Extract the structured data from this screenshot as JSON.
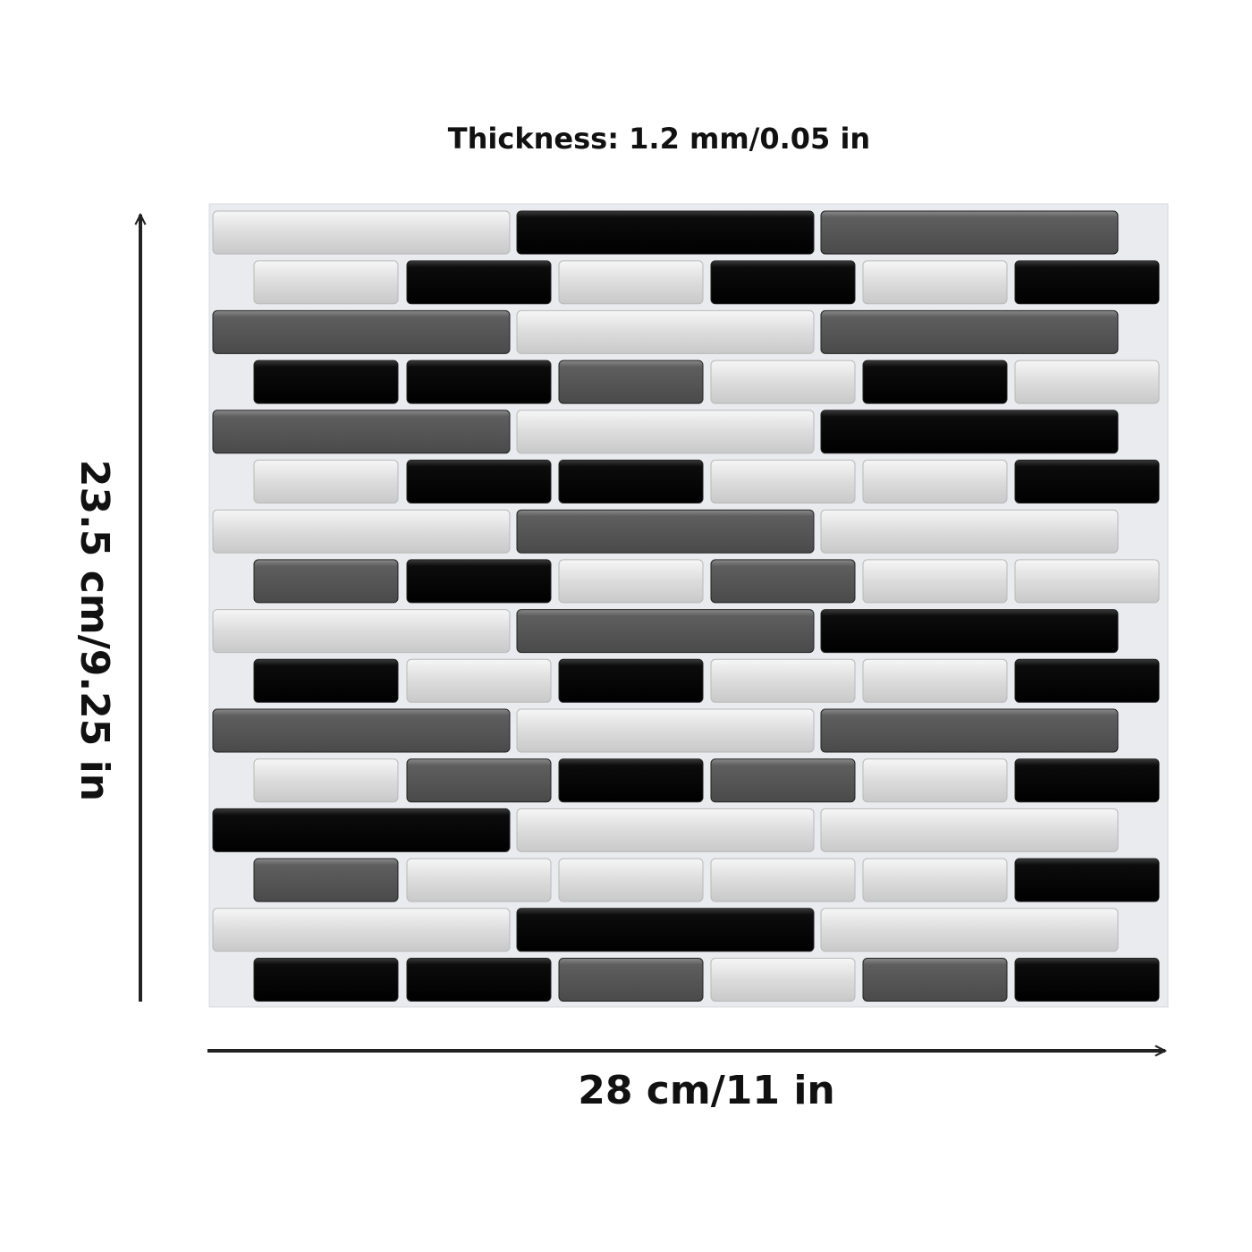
{
  "header": {
    "thickness": "Thickness: 1.2 mm/0.05 in"
  },
  "dimensions": {
    "height": "23.5 cm/9.25 in",
    "width": "28 cm/11 in"
  }
}
